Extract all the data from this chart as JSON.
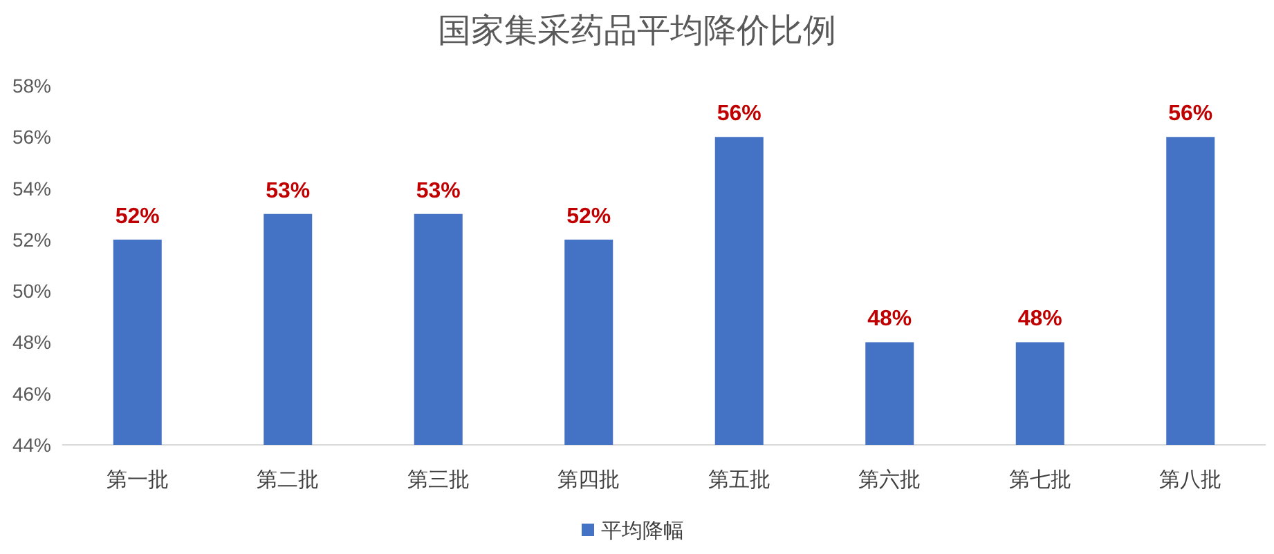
{
  "chart_data": {
    "type": "bar",
    "title": "国家集采药品平均降价比例",
    "categories": [
      "第一批",
      "第二批",
      "第三批",
      "第四批",
      "第五批",
      "第六批",
      "第七批",
      "第八批"
    ],
    "series": [
      {
        "name": "平均降幅",
        "color": "#4472c4",
        "values": [
          52,
          53,
          53,
          52,
          56,
          48,
          48,
          56
        ],
        "value_labels": [
          "52%",
          "53%",
          "53%",
          "52%",
          "56%",
          "48%",
          "48%",
          "56%"
        ]
      }
    ],
    "ylim": [
      44,
      58
    ],
    "yticks": [
      {
        "value": 44,
        "label": "44%"
      },
      {
        "value": 46,
        "label": "46%"
      },
      {
        "value": 48,
        "label": "48%"
      },
      {
        "value": 50,
        "label": "50%"
      },
      {
        "value": 52,
        "label": "52%"
      },
      {
        "value": 54,
        "label": "54%"
      },
      {
        "value": 56,
        "label": "56%"
      },
      {
        "value": 58,
        "label": "58%"
      }
    ],
    "grid": false,
    "legend": "bottom"
  }
}
